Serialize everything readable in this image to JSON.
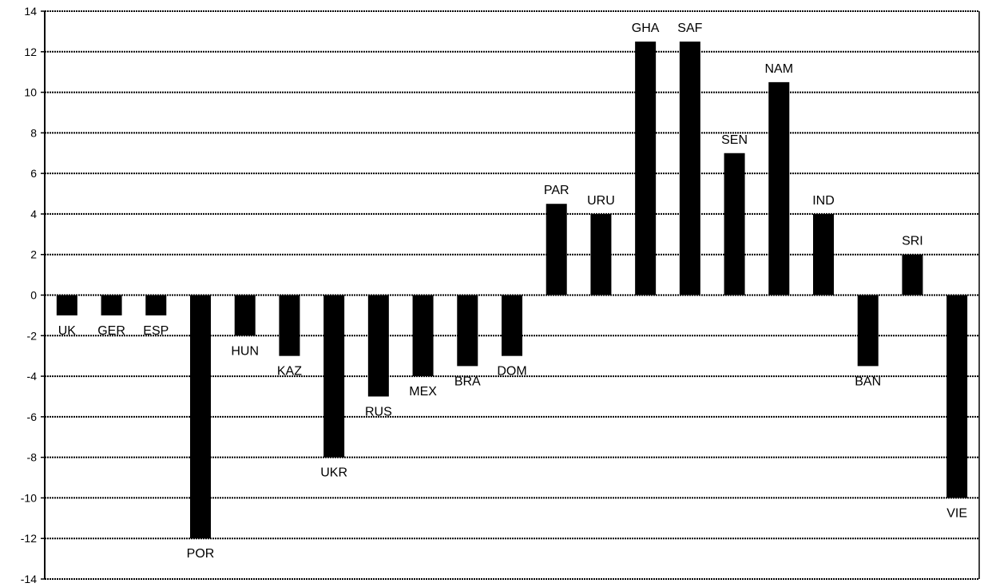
{
  "chart_data": {
    "type": "bar",
    "title": "",
    "xlabel": "",
    "ylabel": "",
    "ylim": [
      -14,
      14
    ],
    "yticks": [
      14,
      12,
      10,
      8,
      6,
      4,
      2,
      0,
      -2,
      -4,
      -6,
      -8,
      -10,
      -12,
      -14
    ],
    "grid": true,
    "legend": "none",
    "bar_color": "#000000",
    "categories": [
      "UK",
      "GER",
      "ESP",
      "POR",
      "HUN",
      "KAZ",
      "UKR",
      "RUS",
      "MEX",
      "BRA",
      "DOM",
      "PAR",
      "URU",
      "GHA",
      "SAF",
      "SEN",
      "NAM",
      "IND",
      "BAN",
      "SRI",
      "VIE"
    ],
    "values": [
      -1,
      -1,
      -1,
      -12,
      -2,
      -3,
      -8,
      -5,
      -4,
      -3.5,
      -3,
      4.5,
      4,
      12.5,
      12.5,
      7,
      10.5,
      4,
      -3.5,
      2,
      -10
    ]
  }
}
